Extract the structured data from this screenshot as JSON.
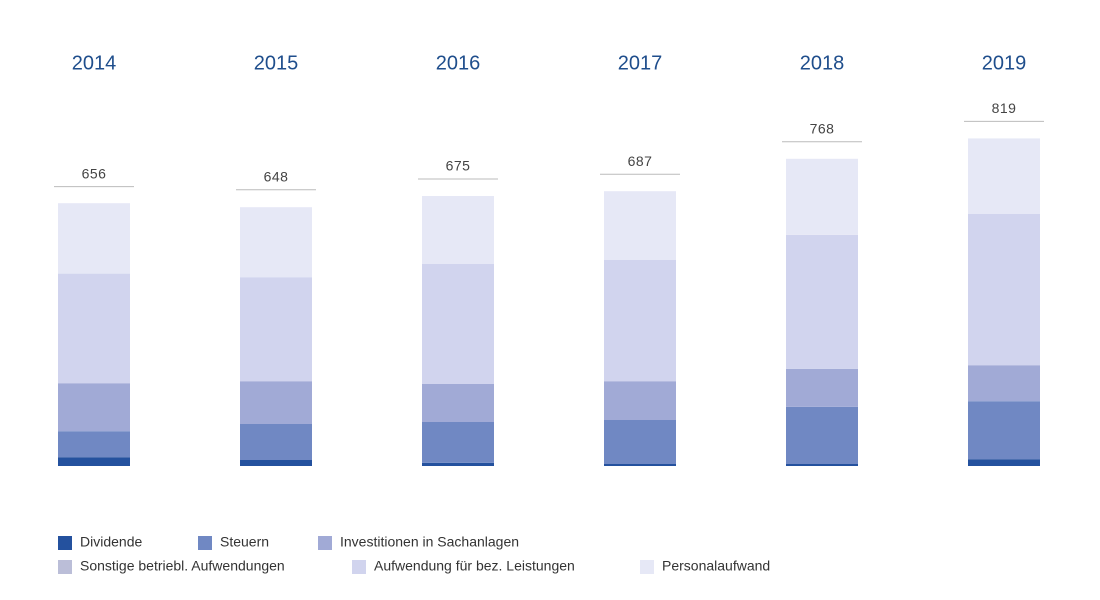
{
  "chart_data": {
    "type": "stacked_bar",
    "categories": [
      "2014",
      "2015",
      "2016",
      "2017",
      "2018",
      "2019"
    ],
    "totals": [
      656,
      648,
      675,
      687,
      768,
      819
    ],
    "ylim": [
      0,
      820
    ],
    "series": [
      {
        "name": "Dividende",
        "color": "#24519e",
        "values": [
          22,
          15,
          8,
          5,
          5,
          17
        ]
      },
      {
        "name": "Steuern",
        "color": "#7088c3",
        "values": [
          65,
          90,
          102,
          110,
          143,
          145
        ]
      },
      {
        "name": "Investitionen in Sachanlagen",
        "color": "#a1aad6",
        "values": [
          120,
          107,
          95,
          97,
          95,
          90
        ]
      },
      {
        "name": "Sonstige betriebl. Aufwendungen",
        "color": "#bbbed8",
        "values": [
          0,
          0,
          0,
          0,
          0,
          0
        ]
      },
      {
        "name": "Aufwendung für bez. Leistungen",
        "color": "#d1d4ee",
        "values": [
          274,
          260,
          300,
          303,
          335,
          378
        ]
      },
      {
        "name": "Personalaufwand",
        "color": "#e6e8f6",
        "values": [
          176,
          175,
          170,
          172,
          190,
          189
        ]
      }
    ]
  }
}
